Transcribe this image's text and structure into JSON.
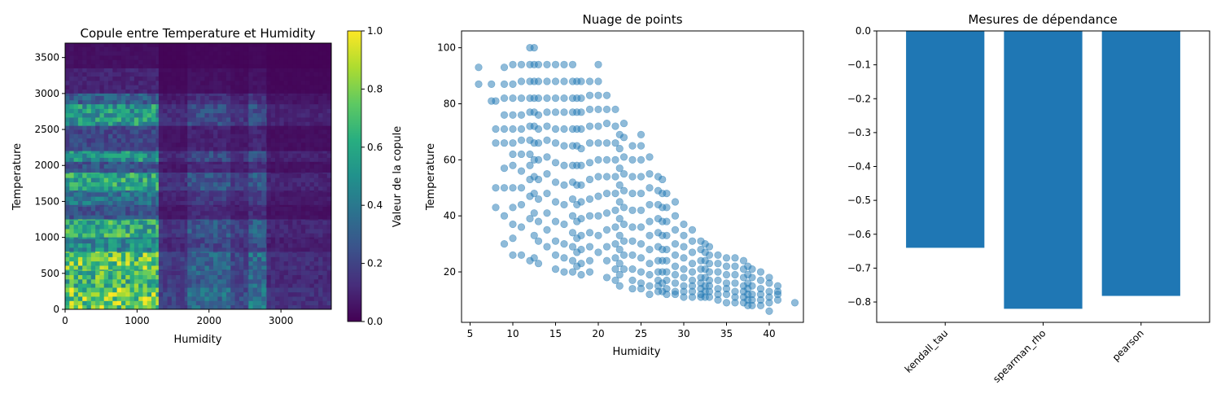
{
  "chart_data": [
    {
      "type": "heatmap",
      "title": "Copule entre Temperature et Humidity",
      "xlabel": "Humidity",
      "ylabel": "Temperature",
      "xlim": [
        0,
        3700
      ],
      "ylim": [
        0,
        3700
      ],
      "xticks": [
        "0",
        "1000",
        "2000",
        "3000"
      ],
      "yticks": [
        "0",
        "500",
        "1000",
        "1500",
        "2000",
        "2500",
        "3000",
        "3500"
      ],
      "colormap": "viridis",
      "colorbar": {
        "label": "Valeur de la copule",
        "range": [
          0.0,
          1.0
        ],
        "ticks": [
          "0.0",
          "0.2",
          "0.4",
          "0.6",
          "0.8",
          "1.0"
        ]
      },
      "row_bands": [
        {
          "y0": 3350,
          "y1": 3700,
          "v": 0.05
        },
        {
          "y0": 3000,
          "y1": 3350,
          "v": 0.12
        },
        {
          "y0": 2850,
          "y1": 3000,
          "v": 0.35
        },
        {
          "y0": 2550,
          "y1": 2850,
          "v": 0.62
        },
        {
          "y0": 2200,
          "y1": 2550,
          "v": 0.25
        },
        {
          "y0": 2050,
          "y1": 2200,
          "v": 0.6
        },
        {
          "y0": 1900,
          "y1": 2050,
          "v": 0.3
        },
        {
          "y0": 1650,
          "y1": 1900,
          "v": 0.68
        },
        {
          "y0": 1450,
          "y1": 1650,
          "v": 0.45
        },
        {
          "y0": 1250,
          "y1": 1450,
          "v": 0.3
        },
        {
          "y0": 1000,
          "y1": 1250,
          "v": 0.72
        },
        {
          "y0": 800,
          "y1": 1000,
          "v": 0.55
        },
        {
          "y0": 550,
          "y1": 800,
          "v": 0.85
        },
        {
          "y0": 300,
          "y1": 550,
          "v": 0.78
        },
        {
          "y0": 0,
          "y1": 300,
          "v": 0.92
        }
      ],
      "col_bands": [
        {
          "x0": 0,
          "x1": 1300,
          "f": 1.0
        },
        {
          "x0": 1300,
          "x1": 1700,
          "f": 0.25
        },
        {
          "x0": 1700,
          "x1": 2300,
          "f": 0.45
        },
        {
          "x0": 2300,
          "x1": 2550,
          "f": 0.3
        },
        {
          "x0": 2550,
          "x1": 2800,
          "f": 0.5
        },
        {
          "x0": 2800,
          "x1": 3700,
          "f": 0.18
        }
      ]
    },
    {
      "type": "scatter",
      "title": "Nuage de points",
      "xlabel": "Humidity",
      "ylabel": "Temperature",
      "xlim": [
        4,
        44
      ],
      "ylim": [
        2,
        106
      ],
      "xticks": [
        5,
        10,
        15,
        20,
        25,
        30,
        35,
        40
      ],
      "yticks": [
        20,
        40,
        60,
        80,
        100
      ],
      "color": "#1f77b4",
      "series": [
        {
          "x": [
            6,
            6,
            7.5,
            7.5,
            8,
            8,
            8,
            8,
            8,
            9,
            9,
            9,
            9,
            9,
            9,
            9,
            9,
            9,
            9,
            10,
            10,
            10,
            10,
            10,
            10,
            10,
            10,
            10,
            10,
            10,
            10,
            10,
            11,
            11,
            11,
            11,
            11,
            11,
            11,
            11,
            11,
            11,
            11,
            11,
            12,
            12,
            12,
            12,
            12,
            12,
            12,
            12,
            12,
            12,
            12,
            12,
            12,
            12.5,
            12.5,
            12.5,
            12.5,
            12.5,
            12.5,
            12.5,
            12.5,
            12.5,
            12.5,
            12.5,
            12.5,
            12.5,
            13,
            13,
            13,
            13,
            13,
            13,
            13,
            13,
            13,
            13,
            13,
            13,
            14,
            14,
            14,
            14,
            14,
            14,
            14,
            14,
            14,
            14,
            14,
            14,
            15,
            15,
            15,
            15,
            15,
            15,
            15,
            15,
            15,
            15,
            15,
            15,
            15,
            16,
            16,
            16,
            16,
            16,
            16,
            16,
            16,
            16,
            16,
            16,
            16,
            16,
            17,
            17,
            17,
            17,
            17,
            17,
            17,
            17,
            17,
            17,
            17,
            17,
            17,
            17,
            17.5,
            17.5,
            17.5,
            17.5,
            17.5,
            17.5,
            17.5,
            17.5,
            17.5,
            17.5,
            17.5,
            17.5,
            18,
            18,
            18,
            18,
            18,
            18,
            18,
            18,
            18,
            18,
            18,
            18,
            18,
            19,
            19,
            19,
            19,
            19,
            19,
            19,
            19,
            19,
            19,
            19,
            19,
            19,
            20,
            20,
            20,
            20,
            20,
            20,
            20,
            20,
            20,
            20,
            20,
            20,
            21,
            21,
            21,
            21,
            21,
            21,
            21,
            21,
            21,
            21,
            21,
            21,
            22,
            22,
            22,
            22,
            22,
            22,
            22,
            22,
            22,
            22,
            22,
            22,
            22.5,
            22.5,
            22.5,
            22.5,
            22.5,
            22.5,
            22.5,
            22.5,
            22.5,
            22.5,
            22.5,
            23,
            23,
            23,
            23,
            23,
            23,
            23,
            23,
            23,
            23,
            24,
            24,
            24,
            24,
            24,
            24,
            24,
            24,
            24,
            24,
            24,
            25,
            25,
            25,
            25,
            25,
            25,
            25,
            25,
            25,
            25,
            25,
            25,
            26,
            26,
            26,
            26,
            26,
            26,
            26,
            26,
            26,
            26,
            26,
            27,
            27,
            27,
            27,
            27,
            27,
            27,
            27,
            27,
            27,
            27,
            27.5,
            27.5,
            27.5,
            27.5,
            27.5,
            27.5,
            27.5,
            27.5,
            27.5,
            27.5,
            28,
            28,
            28,
            28,
            28,
            28,
            28,
            28,
            28,
            28,
            29,
            29,
            29,
            29,
            29,
            29,
            29,
            29,
            29,
            29,
            30,
            30,
            30,
            30,
            30,
            30,
            30,
            30,
            30,
            31,
            31,
            31,
            31,
            31,
            31,
            31,
            31,
            31,
            32,
            32,
            32,
            32,
            32,
            32,
            32,
            32,
            32,
            32.5,
            32.5,
            32.5,
            32.5,
            32.5,
            32.5,
            32.5,
            32.5,
            33,
            33,
            33,
            33,
            33,
            33,
            33,
            33,
            34,
            34,
            34,
            34,
            34,
            34,
            34,
            35,
            35,
            35,
            35,
            35,
            35,
            35,
            36,
            36,
            36,
            36,
            36,
            36,
            36,
            37,
            37,
            37,
            37,
            37,
            37,
            37,
            37.5,
            37.5,
            37.5,
            37.5,
            37.5,
            37.5,
            37.5,
            38,
            38,
            38,
            38,
            38,
            38,
            39,
            39,
            39,
            39,
            39,
            39,
            40,
            40,
            40,
            40,
            40,
            40,
            41,
            41,
            41,
            41,
            43
          ],
          "y": [
            93,
            87,
            87,
            81,
            81,
            71,
            66,
            50,
            43,
            93,
            87,
            82,
            76,
            71,
            66,
            57,
            50,
            40,
            30,
            94,
            87,
            82,
            76,
            71,
            66,
            62,
            58,
            50,
            43,
            37,
            32,
            26,
            94,
            88,
            82,
            76,
            71,
            67,
            62,
            56,
            50,
            44,
            36,
            26,
            100,
            94,
            88,
            82,
            77,
            72,
            67,
            62,
            58,
            53,
            47,
            39,
            24,
            100,
            94,
            88,
            82,
            77,
            72,
            66,
            60,
            54,
            48,
            41,
            33,
            25,
            94,
            88,
            82,
            76,
            71,
            66,
            60,
            53,
            46,
            38,
            31,
            23,
            94,
            88,
            82,
            77,
            72,
            67,
            61,
            55,
            48,
            41,
            35,
            29,
            94,
            88,
            82,
            77,
            71,
            66,
            59,
            52,
            45,
            38,
            31,
            26,
            21,
            94,
            88,
            82,
            77,
            71,
            65,
            58,
            51,
            44,
            37,
            30,
            25,
            20,
            94,
            88,
            82,
            77,
            71,
            65,
            58,
            52,
            46,
            40,
            34,
            29,
            24,
            20,
            88,
            82,
            77,
            71,
            65,
            58,
            51,
            44,
            38,
            32,
            27,
            22,
            88,
            82,
            77,
            71,
            64,
            58,
            51,
            45,
            39,
            33,
            28,
            23,
            19,
            88,
            83,
            78,
            72,
            66,
            59,
            53,
            46,
            40,
            34,
            29,
            24,
            20,
            94,
            88,
            83,
            78,
            72,
            66,
            60,
            54,
            47,
            40,
            33,
            27,
            83,
            78,
            73,
            66,
            60,
            54,
            48,
            41,
            35,
            29,
            24,
            18,
            78,
            72,
            66,
            60,
            54,
            48,
            42,
            36,
            30,
            25,
            21,
            17,
            69,
            64,
            57,
            51,
            45,
            39,
            33,
            28,
            23,
            19,
            15,
            73,
            68,
            61,
            55,
            49,
            43,
            37,
            31,
            26,
            21,
            65,
            60,
            54,
            48,
            42,
            36,
            31,
            26,
            21,
            17,
            14,
            69,
            65,
            60,
            54,
            48,
            42,
            36,
            30,
            25,
            20,
            16,
            14,
            61,
            55,
            50,
            44,
            38,
            33,
            28,
            23,
            19,
            15,
            12,
            54,
            49,
            44,
            39,
            34,
            29,
            24,
            20,
            17,
            15,
            13,
            53,
            48,
            43,
            38,
            33,
            28,
            24,
            20,
            16,
            13,
            48,
            43,
            38,
            33,
            28,
            24,
            20,
            17,
            14,
            12,
            45,
            40,
            35,
            30,
            26,
            22,
            19,
            16,
            13,
            12,
            37,
            33,
            29,
            25,
            21,
            18,
            15,
            13,
            11,
            35,
            31,
            27,
            23,
            20,
            17,
            15,
            13,
            11,
            31,
            28,
            24,
            21,
            18,
            16,
            14,
            12,
            11,
            30,
            27,
            24,
            21,
            18,
            15,
            13,
            11,
            29,
            26,
            23,
            20,
            17,
            15,
            13,
            11,
            26,
            23,
            20,
            17,
            14,
            12,
            10,
            25,
            22,
            19,
            16,
            14,
            12,
            9,
            25,
            22,
            19,
            16,
            13,
            11,
            9,
            24,
            21,
            18,
            15,
            13,
            11,
            9,
            22,
            19,
            16,
            14,
            12,
            10,
            8,
            21,
            18,
            15,
            12,
            10,
            8,
            20,
            17,
            14,
            12,
            10,
            8,
            18,
            16,
            13,
            11,
            9,
            6,
            15,
            13,
            12,
            10,
            9
          ]
        }
      ]
    },
    {
      "type": "bar",
      "title": "Mesures de dépendance",
      "categories": [
        "kendall_tau",
        "spearman_rho",
        "pearson"
      ],
      "values": [
        -0.64,
        -0.82,
        -0.782
      ],
      "ylim": [
        -0.86,
        0.0
      ],
      "yticks": [
        "0.0",
        "−0.1",
        "−0.2",
        "−0.3",
        "−0.4",
        "−0.5",
        "−0.6",
        "−0.7",
        "−0.8"
      ],
      "color": "#1f77b4"
    }
  ]
}
